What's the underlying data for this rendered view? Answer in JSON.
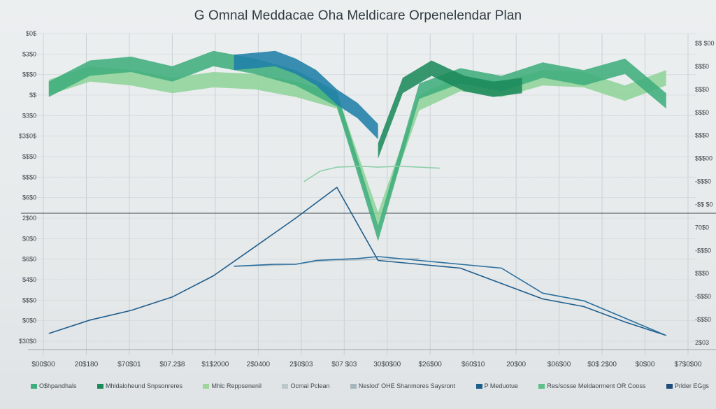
{
  "chart_data": {
    "type": "area",
    "title": "G Omnal Meddacae Oha Meldicare Orpenelendar Plan",
    "xlabel": "",
    "ylabel": "",
    "grid": true,
    "x_tick_labels": [
      "$00$00",
      "20$180",
      "$70$01",
      "$07.2$8",
      "$1$2000",
      "2$0400",
      "2$0$03",
      "$07 $03",
      "30$0$00",
      "$26$00",
      "$60$10",
      "20$00",
      "$06$00",
      "$0$ 2$00",
      "$0$00",
      "$7$0$00"
    ],
    "y_left_labels": [
      "$0$",
      "$3$0",
      "$$$0",
      "$$",
      "$3$0",
      "$3$0$",
      "$$$0",
      "$$$0",
      "$6$0",
      "2$00",
      "$0$0",
      "$6$0",
      "$4$0",
      "$$$0",
      "$0$0",
      "$30$0"
    ],
    "y_right_labels": [
      "$$ $00",
      "$$$0",
      "$$$0",
      "$$$0",
      "$$$0",
      "$$$00",
      "-$$$0",
      "-$$ $0",
      "70$0",
      "-$$$0",
      "$$$0",
      "-$$$0",
      "-$$$0",
      "2$03"
    ],
    "legend_position": "bottom",
    "legend": [
      {
        "label": "O$hpandhals",
        "color": "#3fae7c"
      },
      {
        "label": "Mhldaloheund Snpsonreres",
        "color": "#1d8a5b"
      },
      {
        "label": "Mhlc Reppsenenil",
        "color": "#9fd49c"
      },
      {
        "label": "Ocmal Pclean",
        "color": "#bcc7cc"
      },
      {
        "label": "Neslod' OHE Shanmores Saysront",
        "color": "#a6b6bd"
      },
      {
        "label": "P Meduotue",
        "color": "#1b5e87"
      },
      {
        "label": "Res/sosse Meldaorment OR Cooss",
        "color": "#5fbf8a"
      },
      {
        "label": "Prlder EGgs",
        "color": "#1f4d7a"
      }
    ],
    "series": [
      {
        "name": "Mhlc Reppsenenil",
        "type": "area",
        "color": "#8fd49a",
        "x": [
          0,
          1,
          2,
          3,
          4,
          5,
          6,
          7,
          8,
          9,
          10,
          11,
          12,
          13,
          14,
          15
        ],
        "values": [
          9.1,
          9.8,
          9.6,
          9.2,
          9.5,
          9.4,
          9.0,
          8.4,
          2.2,
          8.3,
          9.3,
          9.0,
          9.6,
          9.5,
          8.8,
          9.6
        ]
      },
      {
        "name": "O$hpandhals",
        "type": "area",
        "color": "#3fae7c",
        "x": [
          0,
          1,
          2,
          3,
          4,
          5,
          6,
          7,
          8,
          9,
          10,
          11,
          12,
          13,
          14,
          15
        ],
        "values": [
          9.0,
          10.1,
          10.3,
          9.8,
          10.6,
          10.2,
          9.6,
          8.5,
          1.5,
          8.9,
          9.7,
          9.3,
          10.0,
          9.6,
          10.2,
          8.4
        ]
      },
      {
        "name": "P Meduotue",
        "type": "area",
        "color": "#1f7fa8",
        "x": [
          4.5,
          5.5,
          6,
          6.5,
          7,
          7.5,
          8
        ],
        "values": [
          10.4,
          10.6,
          10.2,
          9.6,
          8.6,
          7.9,
          6.8
        ]
      },
      {
        "name": "Mhldaloheund Snpsonreres",
        "type": "area",
        "color": "#1d8a5b",
        "x": [
          8,
          8.6,
          9.3,
          10.1,
          10.8,
          11.5
        ],
        "values": [
          5.8,
          9.2,
          10.1,
          9.3,
          9.0,
          9.2
        ]
      },
      {
        "name": "Ocmal Pclean",
        "type": "line",
        "color": "#8fcfa9",
        "x": [
          6.2,
          6.6,
          7.0,
          7.6,
          8.0,
          8.5,
          9.0,
          9.5
        ],
        "values": [
          3.8,
          4.35,
          4.55,
          4.6,
          4.55,
          4.6,
          4.55,
          4.5
        ]
      },
      {
        "name": "Neslod' OHE Shanmores Saysront",
        "type": "line",
        "color": "#b4c2c8",
        "x": [
          4.5,
          5.5,
          6.0,
          6.5,
          7.0,
          8.0,
          9.0
        ],
        "values": [
          -0.6,
          -0.55,
          -0.5,
          -0.35,
          -0.3,
          -0.25,
          -0.2
        ]
      },
      {
        "name": "Prlder EGgs",
        "type": "line",
        "color": "#1f5d8c",
        "x": [
          0,
          1,
          2,
          3,
          4,
          5,
          6,
          7,
          8,
          9,
          10,
          11,
          12,
          13,
          14,
          15
        ],
        "values": [
          -4.1,
          -3.4,
          -2.9,
          -2.2,
          -1.1,
          0.4,
          1.9,
          3.5,
          -0.3,
          -0.5,
          -0.7,
          -1.5,
          -2.3,
          -2.7,
          -3.5,
          -4.2
        ]
      },
      {
        "name": "Prlder EGgs",
        "type": "line",
        "color": "#2a6f9e",
        "x": [
          4.5,
          5.5,
          6.0,
          6.5,
          7.0,
          7.5,
          8.0,
          9.0,
          10.0,
          11.0,
          12.0,
          13.0,
          14.0,
          15.0
        ],
        "values": [
          -0.6,
          -0.5,
          -0.5,
          -0.3,
          -0.25,
          -0.2,
          -0.1,
          -0.3,
          -0.5,
          -0.7,
          -2.0,
          -2.4,
          -3.3,
          -4.2
        ]
      }
    ],
    "ylim": [
      -4.5,
      11.5
    ],
    "xlim": [
      -0.2,
      15.6
    ]
  }
}
